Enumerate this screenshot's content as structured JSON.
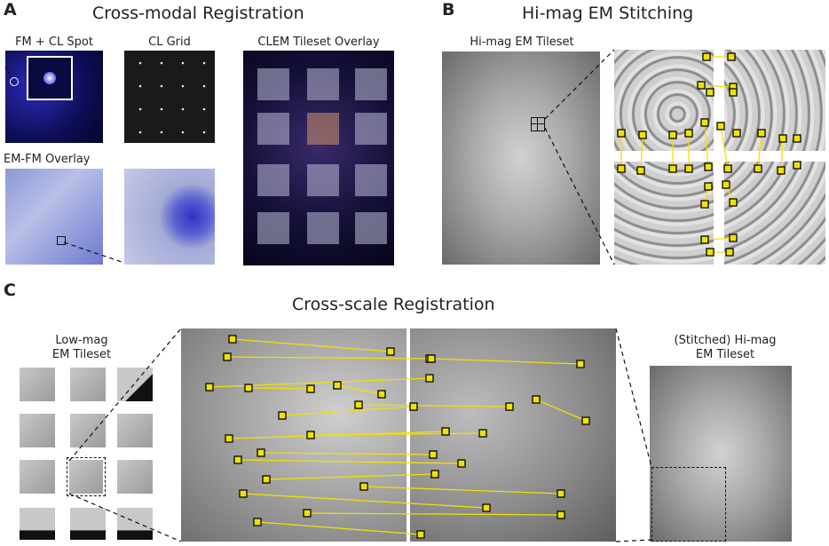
{
  "panel_a": {
    "letter": "A",
    "title": "Cross-modal Registration",
    "label_fm_cl_spot": "FM + CL Spot",
    "label_cl_grid": "CL Grid",
    "label_clem_overlay": "CLEM Tileset Overlay",
    "label_em_fm_overlay": "EM-FM Overlay"
  },
  "panel_b": {
    "letter": "B",
    "title": "Hi-mag EM Stitching",
    "label_hi_mag_tileset": "Hi-mag EM Tileset"
  },
  "panel_c": {
    "letter": "C",
    "title": "Cross-scale Registration",
    "label_low_mag_line1": "Low-mag",
    "label_low_mag_line2": "EM Tileset",
    "label_stitched_line1": "(Stitched) Hi-mag",
    "label_stitched_line2": "EM Tileset"
  },
  "colors": {
    "marker_fill": "#f2e200",
    "marker_stroke": "#111111",
    "match_line": "#f4e000",
    "fm_blue": "#2b2bb8"
  }
}
